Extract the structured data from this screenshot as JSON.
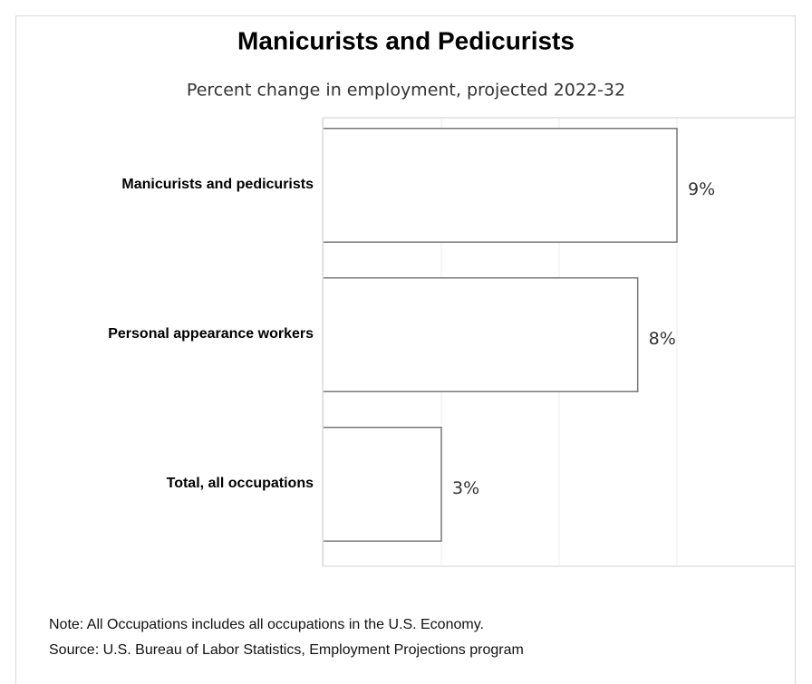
{
  "chart_data": {
    "type": "bar",
    "orientation": "horizontal",
    "title": "Manicurists and Pedicurists",
    "subtitle": "Percent change in employment, projected 2022-32",
    "categories": [
      "Manicurists and pedicurists",
      "Personal appearance workers",
      "Total, all occupations"
    ],
    "values": [
      9,
      8,
      3
    ],
    "value_labels": [
      "9%",
      "8%",
      "3%"
    ],
    "color": "#ffffff",
    "xlim": [
      0,
      12
    ],
    "xticks": [
      0,
      3,
      6,
      9,
      12
    ],
    "grid": true,
    "notes": [
      "Note: All Occupations includes all occupations in the U.S. Economy.",
      "Source: U.S. Bureau of Labor Statistics, Employment Projections program"
    ]
  }
}
